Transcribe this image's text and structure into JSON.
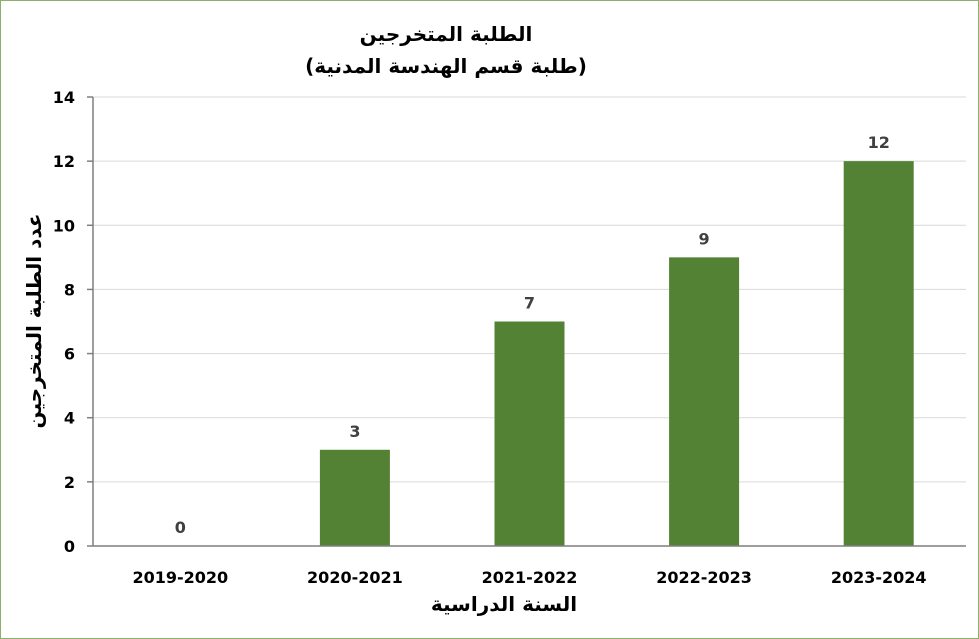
{
  "chart_data": {
    "type": "bar",
    "title": "الطلبة المتخرجين",
    "subtitle": "(طلبة قسم الهندسة المدنية)",
    "xlabel": "السنة الدراسية",
    "ylabel": "عدد الطلبة المتخرجين",
    "categories": [
      "2019-2020",
      "2020-2021",
      "2021-2022",
      "2022-2023",
      "2023-2024"
    ],
    "values": [
      0,
      3,
      7,
      9,
      12
    ],
    "ylim": [
      0,
      14
    ],
    "yticks": [
      0,
      2,
      4,
      6,
      8,
      10,
      12,
      14
    ],
    "grid": true,
    "bar_color": "#548235",
    "grid_color": "#d9d9d9",
    "axis_color": "#7f7f7f",
    "data_label_color": "#404040"
  }
}
